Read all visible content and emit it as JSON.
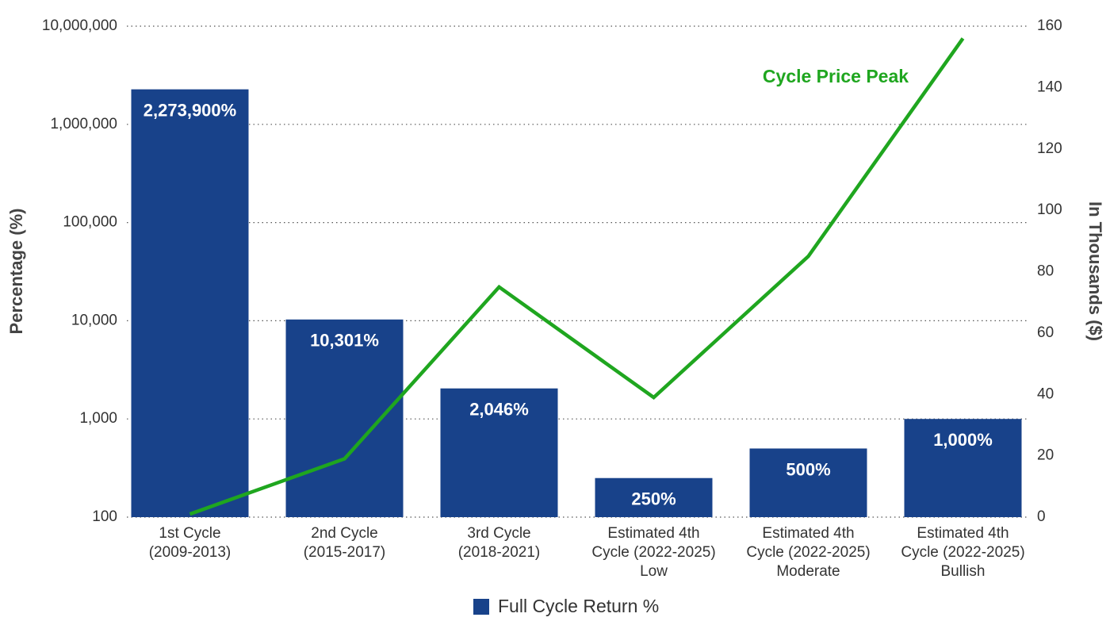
{
  "chart_data": {
    "type": "bar",
    "categories": [
      [
        "1st Cycle",
        "(2009-2013)"
      ],
      [
        "2nd Cycle",
        "(2015-2017)"
      ],
      [
        "3rd Cycle",
        "(2018-2021)"
      ],
      [
        "Estimated 4th",
        "Cycle (2022-2025)",
        "Low"
      ],
      [
        "Estimated 4th",
        "Cycle (2022-2025)",
        "Moderate"
      ],
      [
        "Estimated 4th",
        "Cycle (2022-2025)",
        "Bullish"
      ]
    ],
    "series": [
      {
        "name": "Full Cycle Return %",
        "type": "bar",
        "color": "#18428a",
        "values": [
          2273900,
          10301,
          2046,
          250,
          500,
          1000
        ],
        "value_labels": [
          "2,273,900%",
          "10,301%",
          "2,046%",
          "250%",
          "500%",
          "1,000%"
        ]
      },
      {
        "name": "Cycle Price Peak",
        "type": "line",
        "axis": "y2",
        "color": "#1fa61f",
        "values": [
          1,
          19,
          75,
          39,
          85,
          156
        ]
      }
    ],
    "y_label": "Percentage (%)",
    "y2_label": "In Thousands ($)",
    "yscale": "log",
    "ylim": [
      100,
      10000000
    ],
    "yticks": [
      100,
      {
        "value": 1000,
        "label": "1,000"
      },
      {
        "value": 10000,
        "label": "10,000"
      },
      {
        "value": 100000,
        "label": "100,000"
      },
      {
        "value": 1000000,
        "label": "1,000,000"
      },
      {
        "value": 10000000,
        "label": "10,000,000"
      }
    ],
    "y2lim": [
      0,
      160
    ],
    "y2ticks": [
      0,
      20,
      40,
      60,
      80,
      100,
      120,
      140,
      160
    ],
    "grid": true,
    "legend": "bottom"
  }
}
